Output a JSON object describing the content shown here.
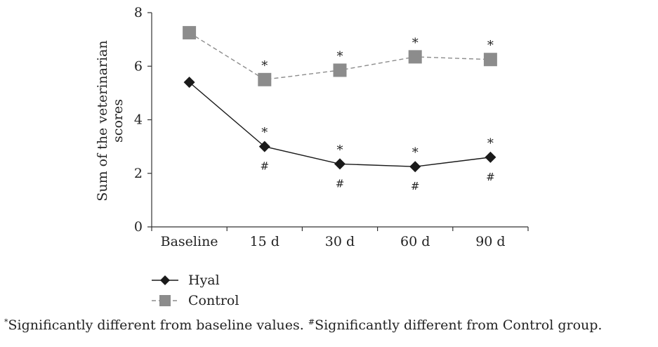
{
  "chart_data": {
    "type": "line",
    "categories": [
      "Baseline",
      "15 d",
      "30 d",
      "60 d",
      "90 d"
    ],
    "series": [
      {
        "name": "Hyal",
        "values": [
          5.4,
          3.0,
          2.35,
          2.25,
          2.6
        ],
        "color": "#1a1a1a",
        "marker": "diamond",
        "line_style": "solid",
        "above_markers": [
          "",
          "*",
          "*",
          "*",
          "*"
        ],
        "below_markers": [
          "",
          "#",
          "#",
          "#",
          "#"
        ]
      },
      {
        "name": "Control",
        "values": [
          7.25,
          5.5,
          5.85,
          6.35,
          6.25
        ],
        "color": "#8c8c8c",
        "marker": "square",
        "line_style": "dashed",
        "above_markers": [
          "",
          "*",
          "*",
          "*",
          "*"
        ],
        "below_markers": [
          "",
          "",
          "",
          "",
          ""
        ]
      }
    ],
    "ylabel": [
      "Sum of the veterinarian",
      "scores"
    ],
    "xlabel": "",
    "ylim": [
      0,
      8
    ],
    "yticks": [
      "0",
      "2",
      "4",
      "6",
      "8"
    ],
    "grid": false,
    "legend_position": "bottom-left"
  },
  "footnote": {
    "mark1": "*",
    "text1": "Significantly different from baseline values. ",
    "mark2": "#",
    "text2": "Significantly different from Control group."
  }
}
